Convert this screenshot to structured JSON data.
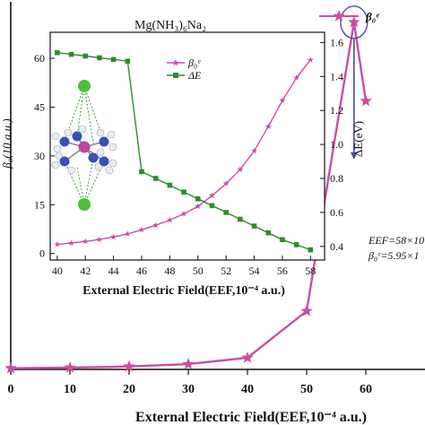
{
  "chart_data": [
    {
      "type": "line",
      "role": "main",
      "xlabel": "External Electric Field(EEF,10⁻⁴ a.u.)",
      "xticks": [
        "0",
        "10",
        "20",
        "30",
        "40",
        "50",
        "60"
      ],
      "xlim": [
        0,
        70
      ],
      "ylim": [
        0,
        6.3
      ],
      "series": [
        {
          "name": "β₀ᵉ",
          "color": "#c84fa3",
          "x": [
            0,
            10,
            20,
            30,
            40,
            50,
            58,
            60
          ],
          "y": [
            0.02,
            0.03,
            0.05,
            0.09,
            0.2,
            1.0,
            5.95,
            4.6
          ]
        }
      ],
      "legend": {
        "label": "β₀ᵉ",
        "position": "top-right"
      },
      "annotation": {
        "line1": "EEF=58×10",
        "line2": "β₀ᵉ=5.95×1",
        "x": 58,
        "arrow_to_y": 3.6,
        "color": "#4a4aa8"
      }
    },
    {
      "type": "line",
      "role": "inset",
      "title": "Mg(NH₃)₆Na₂",
      "xlabel": "External Electric Field(EEF,10⁻⁴ a.u.)",
      "ylabel_left": "β₀(10   a.u.)",
      "ylabel_right": "ΔE(eV)",
      "xticks": [
        "40",
        "42",
        "44",
        "46",
        "48",
        "50",
        "52",
        "54",
        "56",
        "58"
      ],
      "yticks_left": [
        "0",
        "15",
        "30",
        "45",
        "60"
      ],
      "yticks_right": [
        "0.4",
        "0.6",
        "0.8",
        "1.0",
        "1.2",
        "1.4",
        "1.6"
      ],
      "xlim": [
        39.5,
        59
      ],
      "ylim_left": [
        -2,
        68
      ],
      "ylim_right": [
        0.32,
        1.66
      ],
      "series": [
        {
          "name": "β₀ᵉ",
          "axis": "left",
          "color": "#c84fa3",
          "marker": "star",
          "x": [
            40,
            41,
            42,
            43,
            44,
            45,
            46,
            47,
            48,
            49,
            50,
            51,
            52,
            53,
            54,
            55,
            56,
            57,
            58
          ],
          "y": [
            2.8,
            3.2,
            3.7,
            4.3,
            5.1,
            6.0,
            7.3,
            8.7,
            10.3,
            12.2,
            14.5,
            17.8,
            21.5,
            25.8,
            31.5,
            39.0,
            47.0,
            54.0,
            59.5
          ]
        },
        {
          "name": "ΔE",
          "axis": "right",
          "color": "#2e8b2e",
          "marker": "square",
          "x": [
            40,
            41,
            42,
            43,
            44,
            45,
            46,
            47,
            48,
            49,
            50,
            51,
            52,
            53,
            54,
            55,
            56,
            57,
            58
          ],
          "y": [
            1.54,
            1.53,
            1.52,
            1.51,
            1.5,
            1.49,
            0.84,
            0.8,
            0.76,
            0.72,
            0.68,
            0.64,
            0.6,
            0.56,
            0.52,
            0.48,
            0.44,
            0.41,
            0.38
          ]
        }
      ],
      "legend": [
        {
          "label": "β₀ᵉ",
          "color": "#c84fa3",
          "marker": "star"
        },
        {
          "label": "ΔE",
          "color": "#2e8b2e",
          "marker": "square"
        }
      ]
    }
  ]
}
